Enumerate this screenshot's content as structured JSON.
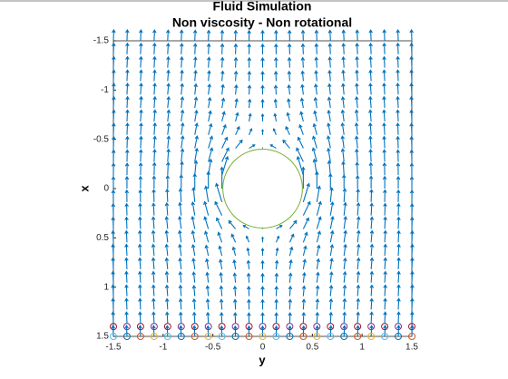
{
  "chart_data": {
    "type": "quiver",
    "title": "Fluid Simulation",
    "subtitle": "Non viscosity - Non rotational",
    "xlabel": "y",
    "ylabel": "x",
    "xlim": [
      -1.5,
      1.5
    ],
    "ylim": [
      -1.5,
      1.5
    ],
    "y_reverse": true,
    "xticks": [
      -1.5,
      -1,
      -0.5,
      0,
      0.5,
      1,
      1.5
    ],
    "yticks": [
      -1.5,
      -1,
      -0.5,
      0,
      0.5,
      1,
      1.5
    ],
    "grid_points": [
      -1.5,
      -1.3636,
      -1.2273,
      -1.0909,
      -0.9545,
      -0.8182,
      -0.6818,
      -0.5455,
      -0.4091,
      -0.2727,
      -0.1364,
      0,
      0.1364,
      0.2727,
      0.4091,
      0.5455,
      0.6818,
      0.8182,
      0.9545,
      1.0909,
      1.2273,
      1.3636,
      1.5
    ],
    "cylinder_radius": 0.4,
    "quiver_color": "#0072bd",
    "cylinder_color": "#77ac30",
    "particles": [
      {
        "x": 1.4,
        "colors": [
          "#a2142f",
          "#7e2f8e"
        ]
      },
      {
        "x": 1.5,
        "colors": [
          "#4dbeee",
          "#0072bd",
          "#d95319",
          "#edb120"
        ]
      }
    ]
  }
}
